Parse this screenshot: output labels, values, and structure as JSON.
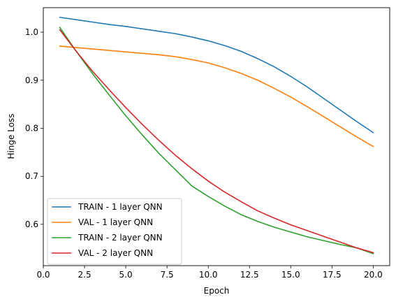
{
  "chart_data": {
    "type": "line",
    "title": "",
    "xlabel": "Epoch",
    "ylabel": "Hinge Loss",
    "xlim": [
      0.0,
      21.0
    ],
    "ylim": [
      0.514,
      1.051
    ],
    "xticks": [
      0.0,
      2.5,
      5.0,
      7.5,
      10.0,
      12.5,
      15.0,
      17.5,
      20.0
    ],
    "xtick_labels": [
      "0.0",
      "2.5",
      "5.0",
      "7.5",
      "10.0",
      "12.5",
      "15.0",
      "17.5",
      "20.0"
    ],
    "yticks": [
      0.6,
      0.7,
      0.8,
      0.9,
      1.0
    ],
    "ytick_labels": [
      "0.6",
      "0.7",
      "0.8",
      "0.9",
      "1.0"
    ],
    "grid": false,
    "legend_position": "bottom-left",
    "x": [
      1,
      2,
      3,
      4,
      5,
      6,
      7,
      8,
      9,
      10,
      11,
      12,
      13,
      14,
      15,
      16,
      17,
      18,
      19,
      20
    ],
    "series": [
      {
        "name": "TRAIN - 1 layer QNN",
        "color": "#1f77b4",
        "values": [
          1.031,
          1.026,
          1.021,
          1.016,
          1.012,
          1.007,
          1.002,
          0.997,
          0.99,
          0.982,
          0.972,
          0.96,
          0.945,
          0.928,
          0.908,
          0.886,
          0.862,
          0.838,
          0.814,
          0.791
        ]
      },
      {
        "name": "VAL - 1 layer QNN",
        "color": "#ff7f0e",
        "values": [
          0.971,
          0.968,
          0.965,
          0.962,
          0.959,
          0.956,
          0.953,
          0.949,
          0.943,
          0.936,
          0.926,
          0.914,
          0.9,
          0.883,
          0.865,
          0.845,
          0.824,
          0.803,
          0.782,
          0.762
        ]
      },
      {
        "name": "TRAIN - 2 layer QNN",
        "color": "#2ca02c",
        "values": [
          1.01,
          0.96,
          0.913,
          0.869,
          0.826,
          0.786,
          0.748,
          0.714,
          0.68,
          0.658,
          0.638,
          0.62,
          0.606,
          0.594,
          0.584,
          0.574,
          0.566,
          0.558,
          0.551,
          0.539
        ]
      },
      {
        "name": "VAL - 2 layer QNN",
        "color": "#d62728",
        "values": [
          1.005,
          0.96,
          0.918,
          0.88,
          0.843,
          0.808,
          0.775,
          0.744,
          0.716,
          0.69,
          0.667,
          0.647,
          0.628,
          0.613,
          0.599,
          0.587,
          0.575,
          0.563,
          0.551,
          0.541
        ]
      }
    ]
  }
}
